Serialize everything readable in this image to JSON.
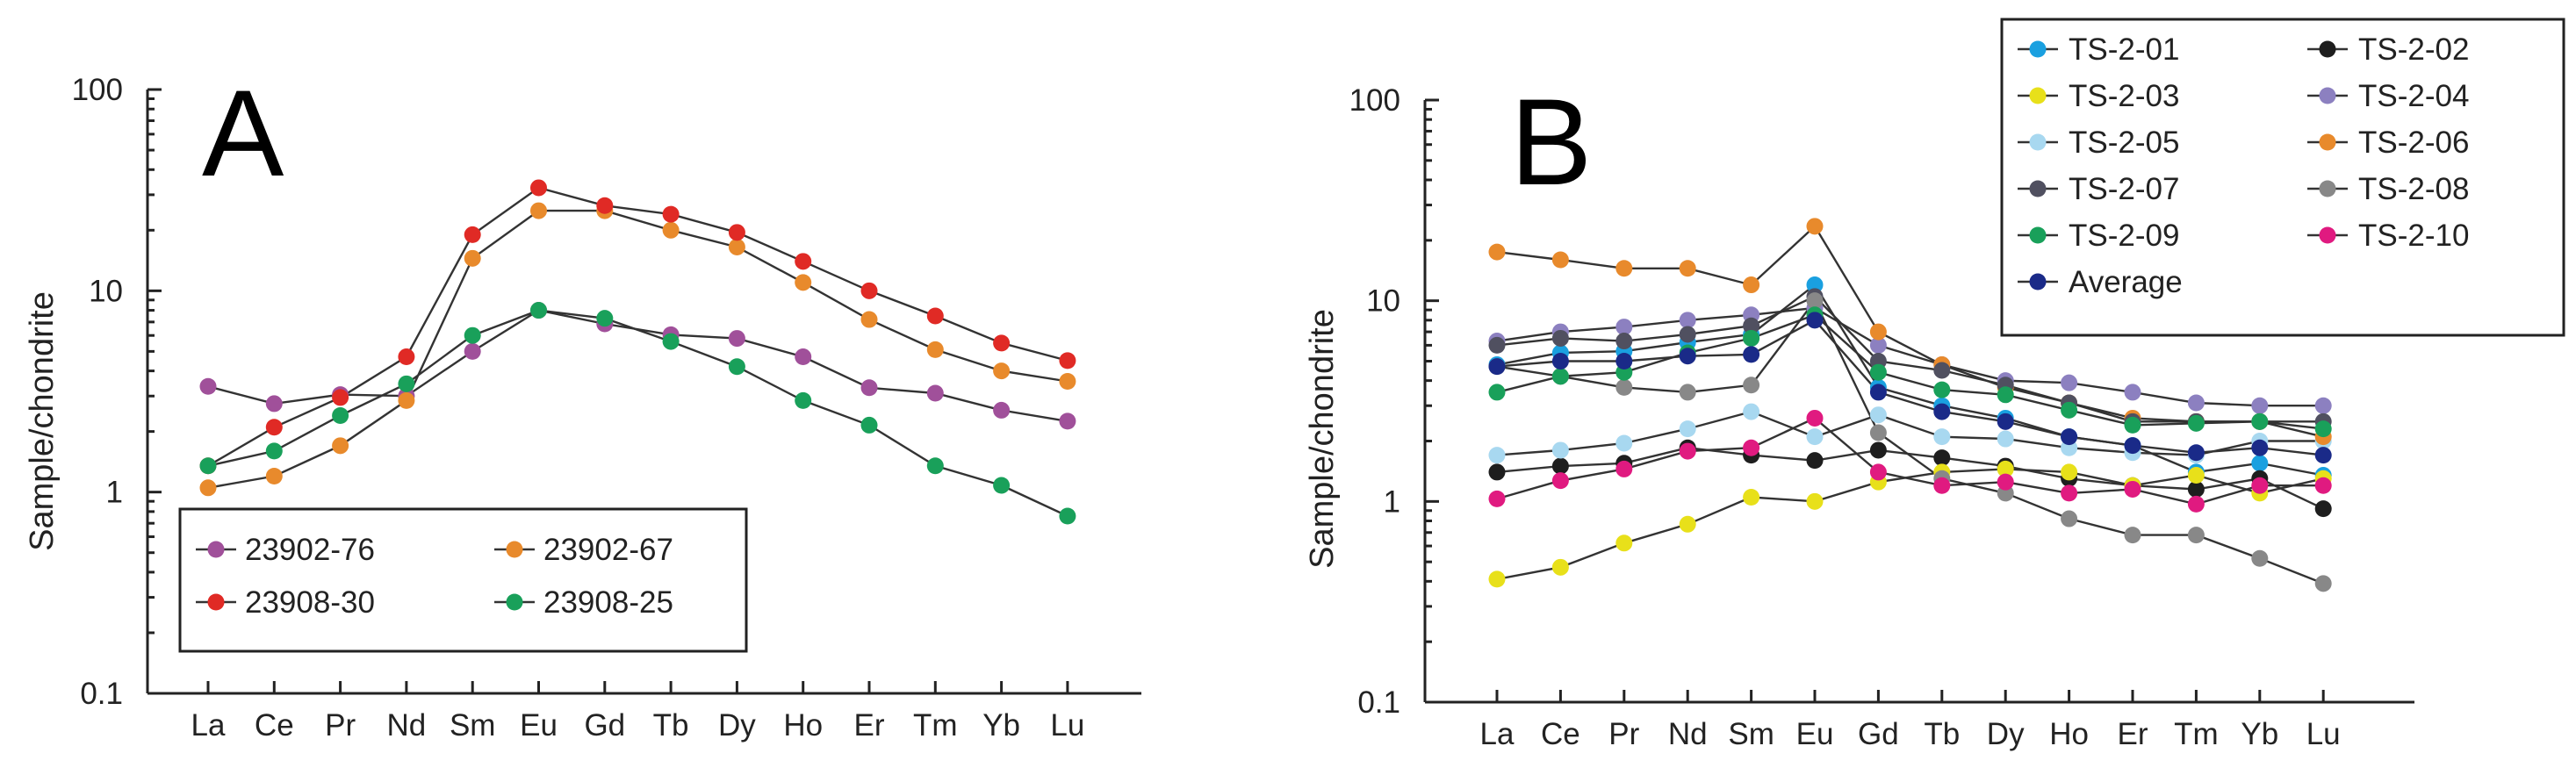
{
  "chart_data": [
    {
      "panel": "A",
      "type": "line",
      "ylabel": "Sample/chondrite",
      "yscale": "log",
      "ylim": [
        0.1,
        100
      ],
      "yticks": [
        "0.1",
        "1",
        "10",
        "100"
      ],
      "categories": [
        "La",
        "Ce",
        "Pr",
        "Nd",
        "Sm",
        "Eu",
        "Gd",
        "Tb",
        "Dy",
        "Ho",
        "Er",
        "Tm",
        "Yb",
        "Lu"
      ],
      "grid": false,
      "legend": "bottom-left",
      "series": [
        {
          "name": "23902-76",
          "color": "#a0509a",
          "values": [
            3.35,
            2.75,
            3.05,
            3.0,
            5.0,
            8.0,
            6.85,
            6.05,
            5.8,
            4.7,
            3.3,
            3.1,
            2.55,
            2.25
          ]
        },
        {
          "name": "23902-67",
          "color": "#e88a2c",
          "values": [
            1.05,
            1.2,
            1.7,
            2.85,
            14.5,
            25.0,
            25.0,
            20.0,
            16.5,
            11.0,
            7.2,
            5.1,
            4.0,
            3.55
          ]
        },
        {
          "name": "23908-30",
          "color": "#e02a25",
          "values": [
            1.35,
            2.1,
            2.95,
            4.7,
            19.0,
            32.5,
            26.5,
            24.0,
            19.5,
            14.0,
            10.0,
            7.5,
            5.5,
            4.5
          ]
        },
        {
          "name": "23908-25",
          "color": "#19a05a",
          "values": [
            1.35,
            1.6,
            2.4,
            3.45,
            6.0,
            8.0,
            7.3,
            5.6,
            4.2,
            2.85,
            2.15,
            1.35,
            1.08,
            0.76
          ]
        }
      ]
    },
    {
      "panel": "B",
      "type": "line",
      "ylabel": "Sample/chondrite",
      "yscale": "log",
      "ylim": [
        0.1,
        100
      ],
      "yticks": [
        "0.1",
        "1",
        "10",
        "100"
      ],
      "categories": [
        "La",
        "Ce",
        "Pr",
        "Nd",
        "Sm",
        "Eu",
        "Gd",
        "Tb",
        "Dy",
        "Ho",
        "Er",
        "Tm",
        "Yb",
        "Lu"
      ],
      "grid": false,
      "legend": "top-right",
      "series": [
        {
          "name": "TS-2-01",
          "color": "#1aa0e0",
          "values": [
            4.8,
            5.5,
            5.6,
            6.2,
            6.8,
            12.0,
            3.7,
            3.0,
            2.6,
            2.1,
            1.9,
            1.4,
            1.55,
            1.35
          ]
        },
        {
          "name": "TS-2-02",
          "color": "#1e1e1e",
          "values": [
            1.4,
            1.5,
            1.55,
            1.85,
            1.7,
            1.6,
            1.8,
            1.65,
            1.5,
            1.3,
            1.2,
            1.15,
            1.3,
            0.92
          ]
        },
        {
          "name": "TS-2-03",
          "color": "#e8e01a",
          "values": [
            0.41,
            0.47,
            0.62,
            0.77,
            1.05,
            1.0,
            1.25,
            1.4,
            1.45,
            1.4,
            1.2,
            1.35,
            1.1,
            1.3
          ]
        },
        {
          "name": "TS-2-04",
          "color": "#8c80c0",
          "values": [
            6.3,
            7.0,
            7.4,
            8.0,
            8.5,
            9.2,
            6.0,
            4.8,
            4.0,
            3.9,
            3.5,
            3.1,
            3.0,
            3.0
          ]
        },
        {
          "name": "TS-2-05",
          "color": "#a8d8f0",
          "values": [
            1.7,
            1.8,
            1.95,
            2.3,
            2.8,
            2.1,
            2.7,
            2.1,
            2.05,
            1.85,
            1.75,
            1.7,
            2.0,
            2.0
          ]
        },
        {
          "name": "TS-2-06",
          "color": "#e88a2c",
          "values": [
            17.5,
            16.0,
            14.5,
            14.5,
            12.0,
            23.5,
            7.0,
            4.8,
            3.7,
            3.1,
            2.6,
            2.5,
            2.5,
            2.1
          ]
        },
        {
          "name": "TS-2-07",
          "color": "#505060",
          "values": [
            6.0,
            6.5,
            6.3,
            6.8,
            7.5,
            10.5,
            5.0,
            4.5,
            3.8,
            3.1,
            2.5,
            2.5,
            2.5,
            2.5
          ]
        },
        {
          "name": "TS-2-08",
          "color": "#888888",
          "values": [
            4.7,
            4.2,
            3.7,
            3.5,
            3.8,
            10.0,
            2.2,
            1.3,
            1.1,
            0.82,
            0.68,
            0.68,
            0.52,
            0.39
          ]
        },
        {
          "name": "TS-2-09",
          "color": "#19a05a",
          "values": [
            3.5,
            4.2,
            4.4,
            5.5,
            6.5,
            8.5,
            4.4,
            3.6,
            3.4,
            2.85,
            2.4,
            2.45,
            2.5,
            2.3
          ]
        },
        {
          "name": "TS-2-10",
          "color": "#e01a80",
          "values": [
            1.03,
            1.27,
            1.45,
            1.78,
            1.85,
            2.6,
            1.4,
            1.2,
            1.25,
            1.1,
            1.15,
            0.97,
            1.2,
            1.2
          ]
        },
        {
          "name": "Average",
          "color": "#1a2a88",
          "values": [
            4.7,
            5.0,
            5.0,
            5.3,
            5.4,
            8.0,
            3.5,
            2.8,
            2.5,
            2.1,
            1.9,
            1.75,
            1.85,
            1.7
          ]
        }
      ]
    }
  ]
}
